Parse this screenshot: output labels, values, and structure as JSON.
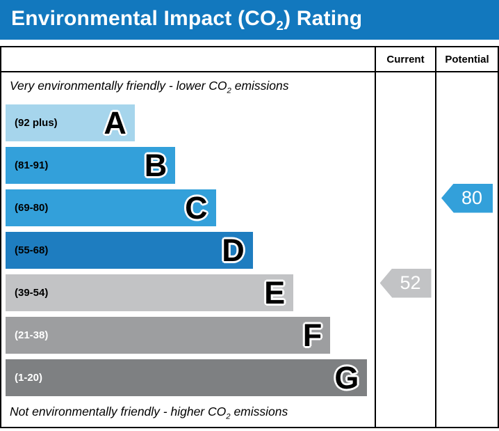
{
  "title": {
    "pre": "Environmental Impact (CO",
    "sub": "2",
    "post": ") Rating"
  },
  "header": {
    "current": "Current",
    "potential": "Potential"
  },
  "notes": {
    "top_pre": "Very environmentally friendly - lower CO",
    "top_sub": "2",
    "top_post": " emissions",
    "bottom_pre": "Not environmentally friendly - higher CO",
    "bottom_sub": "2",
    "bottom_post": " emissions"
  },
  "colors": {
    "title_bar": "#1278be",
    "border": "#000000"
  },
  "chart_data": {
    "type": "bar",
    "title": "Environmental Impact (CO2) Rating",
    "legend_position": "none",
    "grid": false,
    "bands": [
      {
        "letter": "A",
        "range": "(92 plus)",
        "width_pct": 35,
        "color": "#a6d5ec",
        "text_color": "#000000"
      },
      {
        "letter": "B",
        "range": "(81-91)",
        "width_pct": 46,
        "color": "#33a0da",
        "text_color": "#000000"
      },
      {
        "letter": "C",
        "range": "(69-80)",
        "width_pct": 57,
        "color": "#33a0da",
        "text_color": "#000000"
      },
      {
        "letter": "D",
        "range": "(55-68)",
        "width_pct": 67,
        "color": "#1e7dc0",
        "text_color": "#000000"
      },
      {
        "letter": "E",
        "range": "(39-54)",
        "width_pct": 78,
        "color": "#c2c3c5",
        "text_color": "#000000"
      },
      {
        "letter": "F",
        "range": "(21-38)",
        "width_pct": 88,
        "color": "#9d9ea0",
        "text_color": "#ffffff"
      },
      {
        "letter": "G",
        "range": "(1-20)",
        "width_pct": 98,
        "color": "#7e8082",
        "text_color": "#ffffff"
      }
    ],
    "current": {
      "value": 52,
      "band": "E",
      "color": "#c2c3c5"
    },
    "potential": {
      "value": 80,
      "band": "C",
      "color": "#33a0da"
    }
  }
}
